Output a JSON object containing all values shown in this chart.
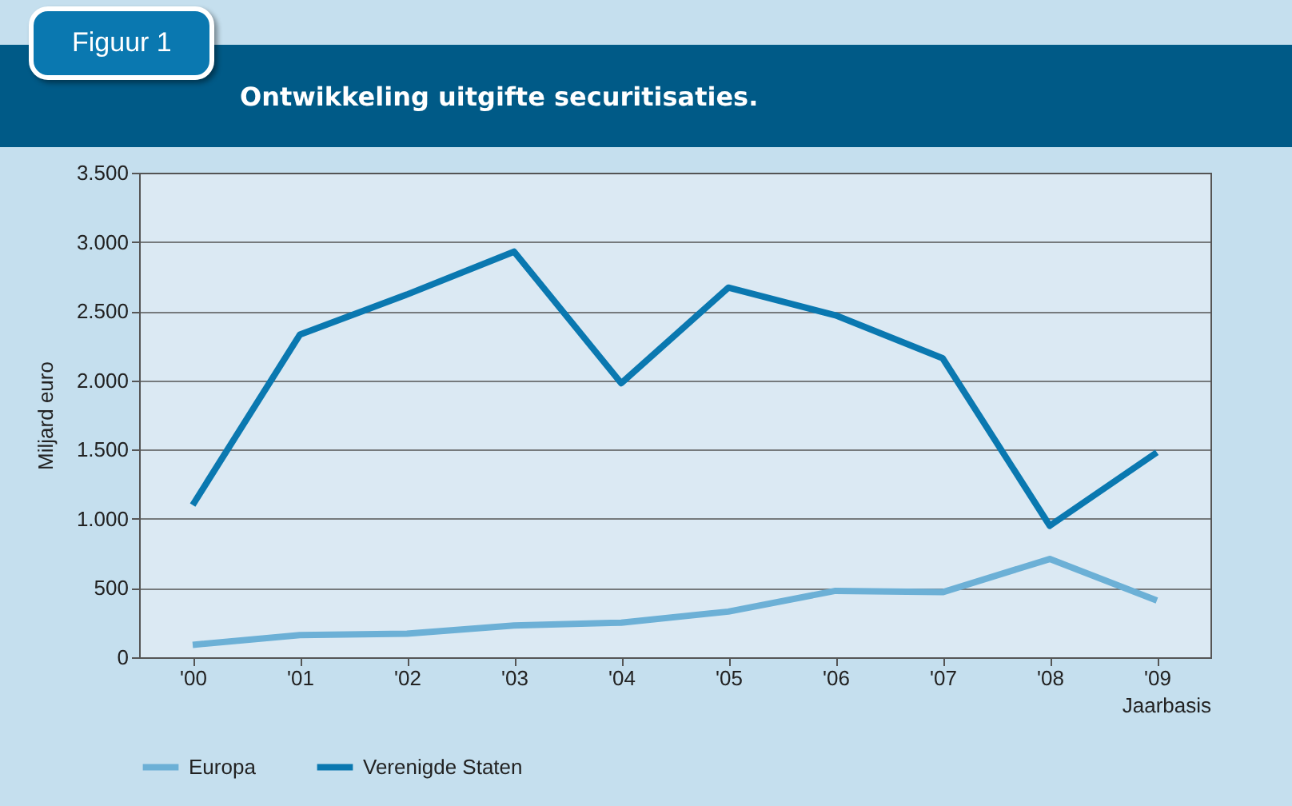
{
  "chart_data": {
    "type": "line",
    "title": "Figuur 1",
    "subtitle": "Ontwikkeling uitgifte securitisaties.",
    "xlabel": "Jaarbasis",
    "ylabel": "Miljard euro",
    "categories": [
      "'00",
      "'01",
      "'02",
      "'03",
      "'04",
      "'05",
      "'06",
      "'07",
      "'08",
      "'09"
    ],
    "series": [
      {
        "name": "Europa",
        "color": "#6cb0d6",
        "values": [
          90,
          160,
          170,
          230,
          250,
          330,
          480,
          470,
          710,
          410
        ]
      },
      {
        "name": "Verenigde Staten",
        "color": "#0a78b0",
        "values": [
          1100,
          2330,
          2620,
          2930,
          1980,
          2670,
          2470,
          2160,
          950,
          1480
        ]
      }
    ],
    "ylim": [
      0,
      3500
    ],
    "yticks": [
      0,
      500,
      {
        "value": 1000,
        "label": "1.000"
      },
      {
        "value": 1500,
        "label": "1.500"
      },
      {
        "value": 2000,
        "label": "2.000"
      },
      {
        "value": 2500,
        "label": "2.500"
      },
      {
        "value": 3000,
        "label": "3.000"
      },
      {
        "value": 3500,
        "label": "3.500"
      }
    ],
    "grid": "y",
    "legend": "bottom",
    "marker": "none",
    "line_style": "solid"
  }
}
